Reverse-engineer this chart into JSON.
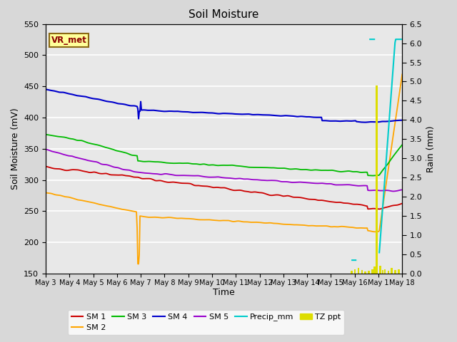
{
  "title": "Soil Moisture",
  "ylabel_left": "Soil Moisture (mV)",
  "ylabel_right": "Rain (mm)",
  "xlabel": "Time",
  "ylim_left": [
    150,
    550
  ],
  "ylim_right": [
    0.0,
    6.5
  ],
  "yticks_left": [
    150,
    200,
    250,
    300,
    350,
    400,
    450,
    500,
    550
  ],
  "yticks_right": [
    0.0,
    0.5,
    1.0,
    1.5,
    2.0,
    2.5,
    3.0,
    3.5,
    4.0,
    4.5,
    5.0,
    5.5,
    6.0,
    6.5
  ],
  "xtick_labels": [
    "May 3",
    "May 4",
    "May 5",
    "May 6",
    "May 7",
    "May 8",
    "May 9",
    "May 10",
    "May 11",
    "May 12",
    "May 13",
    "May 14",
    "May 15",
    "May 16",
    "May 1",
    "May 18"
  ],
  "vr_met_label": "VR_met",
  "vr_met_color": "#8B0000",
  "vr_met_bg": "#FFFF99",
  "vr_met_border": "#8B6914",
  "colors": {
    "SM1": "#cc0000",
    "SM2": "#FFA500",
    "SM3": "#00bb00",
    "SM4": "#0000cc",
    "SM5": "#9900cc",
    "Precip": "#00cccc",
    "TZ": "#dddd00"
  },
  "bg_color": "#e8e8e8",
  "fig_bg": "#d8d8d8"
}
